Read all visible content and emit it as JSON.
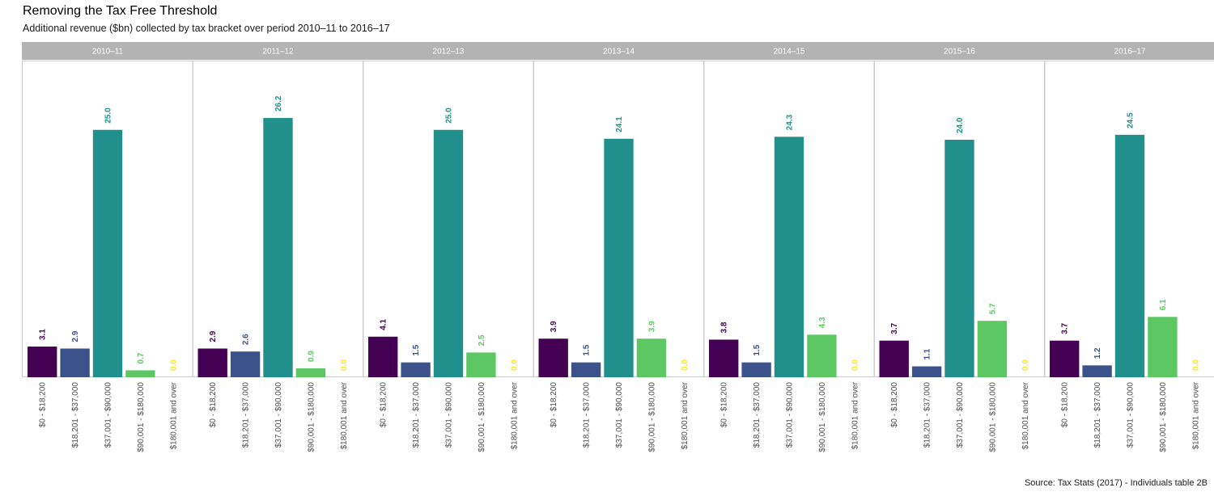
{
  "title": "Removing the Tax Free Threshold",
  "subtitle": "Additional revenue ($bn) collected by tax bracket over period 2010–11 to 2016–17",
  "caption": "Source: Tax Stats (2017) - Individuals table 2B",
  "colors": {
    "strip_bg": "#b3b3b3",
    "panel_border": "#cccccc",
    "series": [
      "#440154",
      "#3b528b",
      "#21908c",
      "#5dc863",
      "#fde725"
    ]
  },
  "chart_data": {
    "type": "bar",
    "title": "Removing the Tax Free Threshold",
    "subtitle": "Additional revenue ($bn) collected by tax bracket over period 2010–11 to 2016–17",
    "categories": [
      "$0 - $18,200",
      "$18,201 - $37,000",
      "$37,001 - $90,000",
      "$90,001 - $180,000",
      "$180,001 and over"
    ],
    "ylim": [
      0,
      32
    ],
    "grid": false,
    "legend": "none",
    "facets": [
      {
        "name": "2010–11",
        "values": [
          3.1,
          2.9,
          25.0,
          0.7,
          0.0
        ]
      },
      {
        "name": "2011–12",
        "values": [
          2.9,
          2.6,
          26.2,
          0.9,
          0.0
        ]
      },
      {
        "name": "2012–13",
        "values": [
          4.1,
          1.5,
          25.0,
          2.5,
          0.0
        ]
      },
      {
        "name": "2013–14",
        "values": [
          3.9,
          1.5,
          24.1,
          3.9,
          0.0
        ]
      },
      {
        "name": "2014–15",
        "values": [
          3.8,
          1.5,
          24.3,
          4.3,
          0.0
        ]
      },
      {
        "name": "2015–16",
        "values": [
          3.7,
          1.1,
          24.0,
          5.7,
          0.0
        ]
      },
      {
        "name": "2016–17",
        "values": [
          3.7,
          1.2,
          24.5,
          6.1,
          0.0
        ]
      }
    ]
  }
}
